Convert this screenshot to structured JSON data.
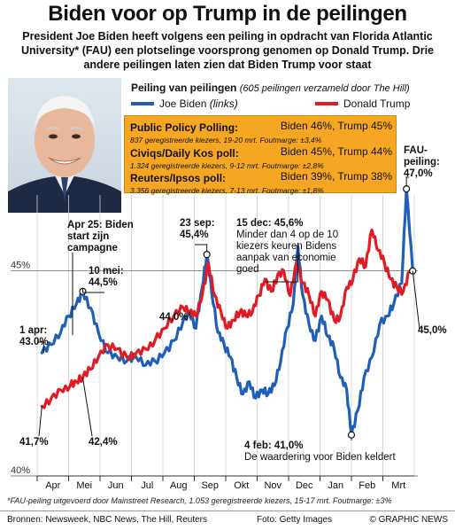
{
  "header": {
    "title": "Biden voor op Trump in de peilingen",
    "subtitle": "President Joe Biden heeft volgens een peiling in opdracht van Florida Atlantic University* (FAU) een plotselinge voorsprong genomen op Donald Trump. Drie andere peilingen laten zien dat Biden Trump voor staat"
  },
  "chart_title": {
    "main": "Peiling van peilingen",
    "sub": "(605 peilingen verzameld door The Hill)"
  },
  "legend": {
    "biden": "Joe Biden",
    "biden_note": "(links)",
    "trump": "Donald Trump"
  },
  "polls": [
    {
      "name": "Public Policy Polling:",
      "result": "Biden 46%, Trump 45%",
      "detail": "837 geregistreerde kiezers, 19-20 mrt. Foutmarge: ±3,4%"
    },
    {
      "name": "Civiqs/Daily Kos poll:",
      "result": "Biden 45%, Trump 44%",
      "detail": "1.324 geregistreerde kiezers, 9-12 mrt. Foutmarge: ±2,8%"
    },
    {
      "name": "Reuters/Ipsos poll:",
      "result": "Biden 39%, Trump 38%",
      "detail": "3.356 geregistreerde kiezers, 7-13 mrt. Foutmarge: ±1,8%"
    }
  ],
  "annotations": {
    "apr25": "Apr 25: Biden start zijn campagne",
    "mei10_date": "10 mei:",
    "mei10_val": "44,5%",
    "apr1_date": "1 apr:",
    "apr1_val": "43.0%",
    "aug_val": "44,0%",
    "sep23_date": "23 sep:",
    "sep23_val": "45,4%",
    "dec15_head": "15 dec: 45,6%",
    "dec15_text": "Minder dan 4 op de 10 kiezers keuren Bidens aanpak van economie goed",
    "fau_label": "FAU-peiling:",
    "fau_val": "47,0%",
    "end_val": "45,0%",
    "trump_start": "41,7%",
    "trump_may": "42,4%",
    "feb4_head": "4 feb: 41,0%",
    "feb4_text": "De waardering voor Biden keldert"
  },
  "footnote": "*FAU-peiling uitgevoerd door Mainstreet Research, 1.053 geregistreerde kiezers, 15-17 mrt. Foutmarge: ±3%",
  "sources": {
    "left": "Bronnen: Newsweek, NBC News, The Hill, Reuters",
    "mid": "Foto: Getty Images",
    "right": "© GRAPHIC NEWS"
  },
  "colors": {
    "biden": "#1f5fb8",
    "trump": "#e01b24",
    "box": "#f5a623",
    "grid": "#cfcfcf"
  },
  "chart_data": {
    "type": "line",
    "categories": [
      "Apr",
      "Mei",
      "Jun",
      "Jul",
      "Aug",
      "Sep",
      "Okt",
      "Nov",
      "Dec",
      "Jan",
      "Feb",
      "Mrt"
    ],
    "ylim": [
      40,
      47.5
    ],
    "yticks": [
      {
        "value": 45,
        "label": "45%"
      },
      {
        "value": 40,
        "label": "40%"
      }
    ],
    "series": [
      {
        "name": "Joe Biden",
        "color": "#1f5fb8",
        "points": [
          [
            0,
            43.0
          ],
          [
            0.3,
            43.2
          ],
          [
            0.6,
            43.5
          ],
          [
            0.85,
            43.9
          ],
          [
            1.1,
            44.2
          ],
          [
            1.3,
            44.5
          ],
          [
            1.55,
            44.1
          ],
          [
            1.8,
            43.5
          ],
          [
            2.1,
            43.0
          ],
          [
            2.4,
            42.9
          ],
          [
            2.7,
            42.8
          ],
          [
            3.0,
            42.9
          ],
          [
            3.3,
            42.7
          ],
          [
            3.6,
            42.8
          ],
          [
            3.9,
            43.0
          ],
          [
            4.2,
            43.3
          ],
          [
            4.5,
            43.8
          ],
          [
            4.7,
            44.0
          ],
          [
            4.9,
            43.6
          ],
          [
            5.1,
            44.6
          ],
          [
            5.25,
            45.4
          ],
          [
            5.4,
            44.5
          ],
          [
            5.6,
            43.5
          ],
          [
            5.8,
            43.2
          ],
          [
            6.0,
            42.9
          ],
          [
            6.2,
            42.4
          ],
          [
            6.4,
            42.0
          ],
          [
            6.6,
            42.3
          ],
          [
            6.8,
            41.9
          ],
          [
            7.0,
            42.1
          ],
          [
            7.2,
            42.0
          ],
          [
            7.4,
            42.2
          ],
          [
            7.6,
            42.8
          ],
          [
            7.8,
            43.6
          ],
          [
            8.0,
            44.2
          ],
          [
            8.15,
            45.6
          ],
          [
            8.3,
            44.4
          ],
          [
            8.5,
            43.7
          ],
          [
            8.7,
            43.3
          ],
          [
            8.9,
            43.9
          ],
          [
            9.1,
            43.4
          ],
          [
            9.3,
            43.1
          ],
          [
            9.5,
            42.4
          ],
          [
            9.7,
            42.1
          ],
          [
            9.85,
            41.0
          ],
          [
            10.05,
            41.6
          ],
          [
            10.25,
            42.4
          ],
          [
            10.5,
            42.9
          ],
          [
            10.75,
            43.7
          ],
          [
            11.0,
            43.9
          ],
          [
            11.2,
            44.2
          ],
          [
            11.45,
            44.7
          ],
          [
            11.6,
            47.0
          ],
          [
            11.8,
            45.0
          ]
        ]
      },
      {
        "name": "Donald Trump",
        "color": "#e01b24",
        "points": [
          [
            0,
            41.7
          ],
          [
            0.3,
            41.9
          ],
          [
            0.6,
            42.1
          ],
          [
            0.9,
            42.2
          ],
          [
            1.1,
            42.3
          ],
          [
            1.3,
            42.4
          ],
          [
            1.55,
            42.6
          ],
          [
            1.8,
            42.9
          ],
          [
            2.1,
            43.2
          ],
          [
            2.4,
            43.1
          ],
          [
            2.7,
            42.9
          ],
          [
            3.0,
            43.0
          ],
          [
            3.3,
            43.1
          ],
          [
            3.6,
            43.3
          ],
          [
            3.9,
            43.6
          ],
          [
            4.2,
            43.9
          ],
          [
            4.5,
            44.1
          ],
          [
            4.7,
            44.0
          ],
          [
            4.9,
            43.9
          ],
          [
            5.1,
            44.4
          ],
          [
            5.3,
            45.2
          ],
          [
            5.5,
            44.4
          ],
          [
            5.7,
            44.0
          ],
          [
            5.9,
            43.6
          ],
          [
            6.1,
            43.8
          ],
          [
            6.3,
            44.0
          ],
          [
            6.5,
            43.9
          ],
          [
            6.7,
            44.0
          ],
          [
            6.9,
            44.4
          ],
          [
            7.1,
            44.8
          ],
          [
            7.3,
            44.5
          ],
          [
            7.5,
            44.9
          ],
          [
            7.7,
            45.0
          ],
          [
            7.9,
            44.4
          ],
          [
            8.1,
            45.2
          ],
          [
            8.3,
            44.7
          ],
          [
            8.5,
            44.4
          ],
          [
            8.7,
            43.9
          ],
          [
            8.9,
            44.5
          ],
          [
            9.1,
            44.3
          ],
          [
            9.3,
            43.8
          ],
          [
            9.5,
            43.9
          ],
          [
            9.7,
            44.6
          ],
          [
            9.9,
            44.8
          ],
          [
            10.1,
            45.3
          ],
          [
            10.3,
            45.1
          ],
          [
            10.5,
            46.0
          ],
          [
            10.7,
            45.5
          ],
          [
            10.9,
            45.2
          ],
          [
            11.1,
            44.8
          ],
          [
            11.3,
            44.6
          ],
          [
            11.5,
            44.5
          ],
          [
            11.7,
            45.0
          ]
        ]
      }
    ]
  }
}
